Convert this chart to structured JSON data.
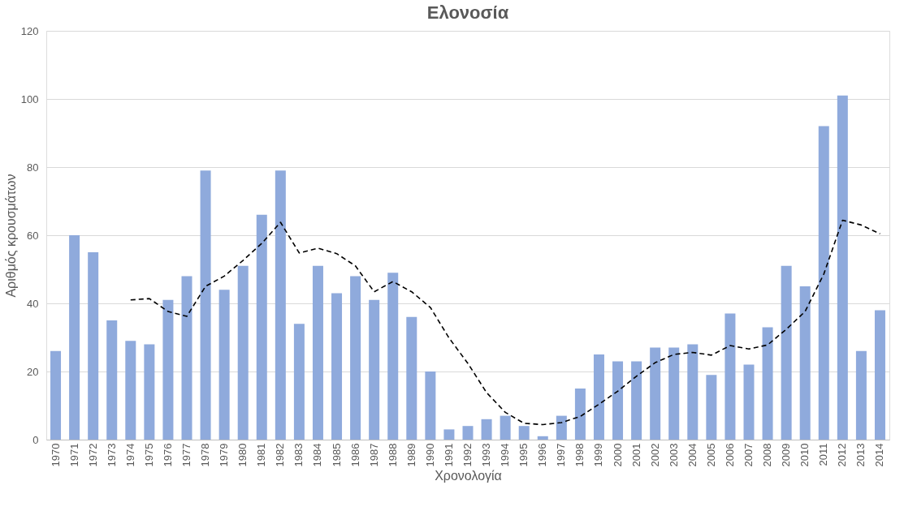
{
  "chart_data": {
    "type": "bar",
    "title": "Ελονοσία",
    "xlabel": "Χρονολογία",
    "ylabel": "Αριθμός κρουσμάτων",
    "categories": [
      "1970",
      "1971",
      "1972",
      "1973",
      "1974",
      "1975",
      "1976",
      "1977",
      "1978",
      "1979",
      "1980",
      "1981",
      "1982",
      "1983",
      "1984",
      "1985",
      "1986",
      "1987",
      "1988",
      "1989",
      "1990",
      "1991",
      "1992",
      "1993",
      "1994",
      "1995",
      "1996",
      "1997",
      "1998",
      "1999",
      "2000",
      "2001",
      "2002",
      "2003",
      "2004",
      "2005",
      "2006",
      "2007",
      "2008",
      "2009",
      "2010",
      "2011",
      "2012",
      "2013",
      "2014"
    ],
    "series": [
      {
        "color": "#8faadc",
        "values": [
          26,
          60,
          55,
          35,
          29,
          28,
          41,
          48,
          79,
          44,
          51,
          66,
          79,
          34,
          51,
          43,
          48,
          41,
          49,
          36,
          20,
          3,
          4,
          6,
          7,
          4,
          1,
          7,
          15,
          25,
          23,
          23,
          27,
          27,
          28,
          19,
          37,
          22,
          33,
          51,
          45,
          92,
          101,
          26,
          38
        ]
      },
      {
        "type": "line",
        "color": "#000000",
        "line_style": "dashed",
        "values": [
          null,
          null,
          null,
          null,
          41,
          41.4,
          37.6,
          36.2,
          45,
          48,
          52.6,
          57.6,
          63.8,
          54.8,
          56.2,
          54.6,
          51,
          43.4,
          46.4,
          43.4,
          38.8,
          29.8,
          22.4,
          13.8,
          8,
          4.8,
          4.4,
          5,
          6.8,
          10.4,
          14.2,
          18.6,
          22.6,
          25,
          25.6,
          24.8,
          27.6,
          26.6,
          27.8,
          32.4,
          37.6,
          48.6,
          64.4,
          63,
          60.4
        ]
      }
    ],
    "ylim": [
      0,
      120
    ],
    "yticks": [
      0,
      20,
      40,
      60,
      80,
      100,
      120
    ],
    "grid": "y"
  }
}
